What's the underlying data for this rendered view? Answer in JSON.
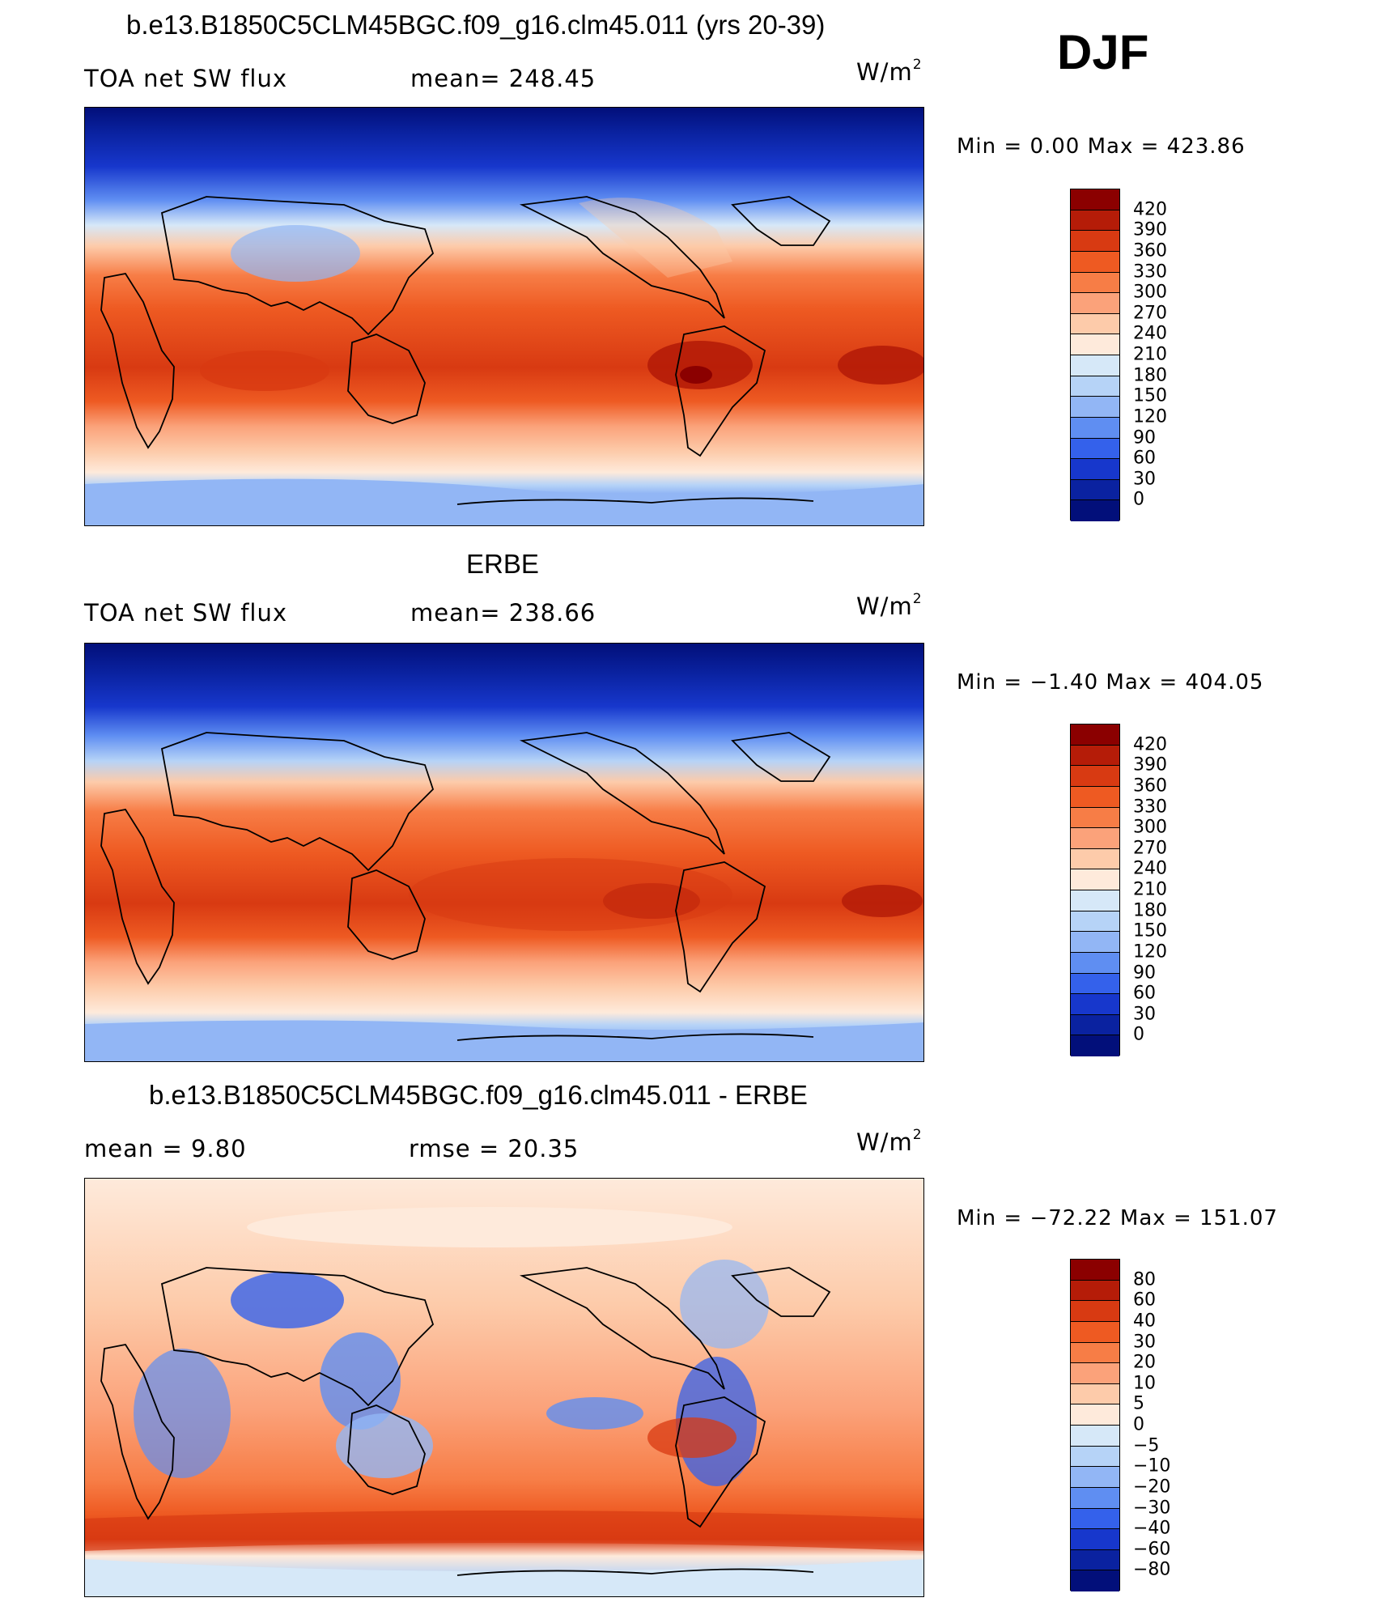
{
  "season": "DJF",
  "panels": [
    {
      "id": "model",
      "title": "b.e13.B1850C5CLM45BGC.f09_g16.clm45.011 (yrs 20-39)",
      "left_label": "TOA net SW flux",
      "mid_label": "mean=  248.45",
      "unit": "W/m",
      "unit_exp": "2",
      "minmax": "Min  =     0.00  Max  =  423.86",
      "colorbar": {
        "colors": [
          "#8b0000",
          "#b51c08",
          "#d83a12",
          "#ee5a22",
          "#f77d46",
          "#fba27a",
          "#fdcbaa",
          "#feeadb",
          "#d6e8f8",
          "#b6d3f7",
          "#92b6f5",
          "#5f8ef2",
          "#3461eb",
          "#1737cc",
          "#0a22a0",
          "#020f7a"
        ],
        "labels": [
          "420",
          "390",
          "360",
          "330",
          "300",
          "270",
          "240",
          "210",
          "180",
          "150",
          "120",
          "90",
          "60",
          "30",
          "0"
        ]
      }
    },
    {
      "id": "obs",
      "title": "ERBE",
      "left_label": "TOA net SW flux",
      "mid_label": "mean=  238.66",
      "unit": "W/m",
      "unit_exp": "2",
      "minmax": "Min  =   −1.40  Max  =  404.05",
      "colorbar": {
        "colors": [
          "#8b0000",
          "#b51c08",
          "#d83a12",
          "#ee5a22",
          "#f77d46",
          "#fba27a",
          "#fdcbaa",
          "#feeadb",
          "#d6e8f8",
          "#b6d3f7",
          "#92b6f5",
          "#5f8ef2",
          "#3461eb",
          "#1737cc",
          "#0a22a0",
          "#020f7a"
        ],
        "labels": [
          "420",
          "390",
          "360",
          "330",
          "300",
          "270",
          "240",
          "210",
          "180",
          "150",
          "120",
          "90",
          "60",
          "30",
          "0"
        ]
      }
    },
    {
      "id": "diff",
      "title": "b.e13.B1850C5CLM45BGC.f09_g16.clm45.011 - ERBE",
      "left_label": "mean  =      9.80",
      "mid_label": "rmse  =    20.35",
      "unit": "W/m",
      "unit_exp": "2",
      "minmax": "Min  = −72.22  Max  =  151.07",
      "colorbar": {
        "colors": [
          "#8b0000",
          "#b51c08",
          "#d83a12",
          "#ee5a22",
          "#f77d46",
          "#fba27a",
          "#fdcbaa",
          "#feeadb",
          "#d6e8f8",
          "#b6d3f7",
          "#92b6f5",
          "#5f8ef2",
          "#3461eb",
          "#1737cc",
          "#0a22a0",
          "#020f7a"
        ],
        "labels": [
          "80",
          "60",
          "40",
          "30",
          "20",
          "10",
          "5",
          "0",
          "−5",
          "−10",
          "−20",
          "−30",
          "−40",
          "−60",
          "−80"
        ]
      }
    }
  ]
}
